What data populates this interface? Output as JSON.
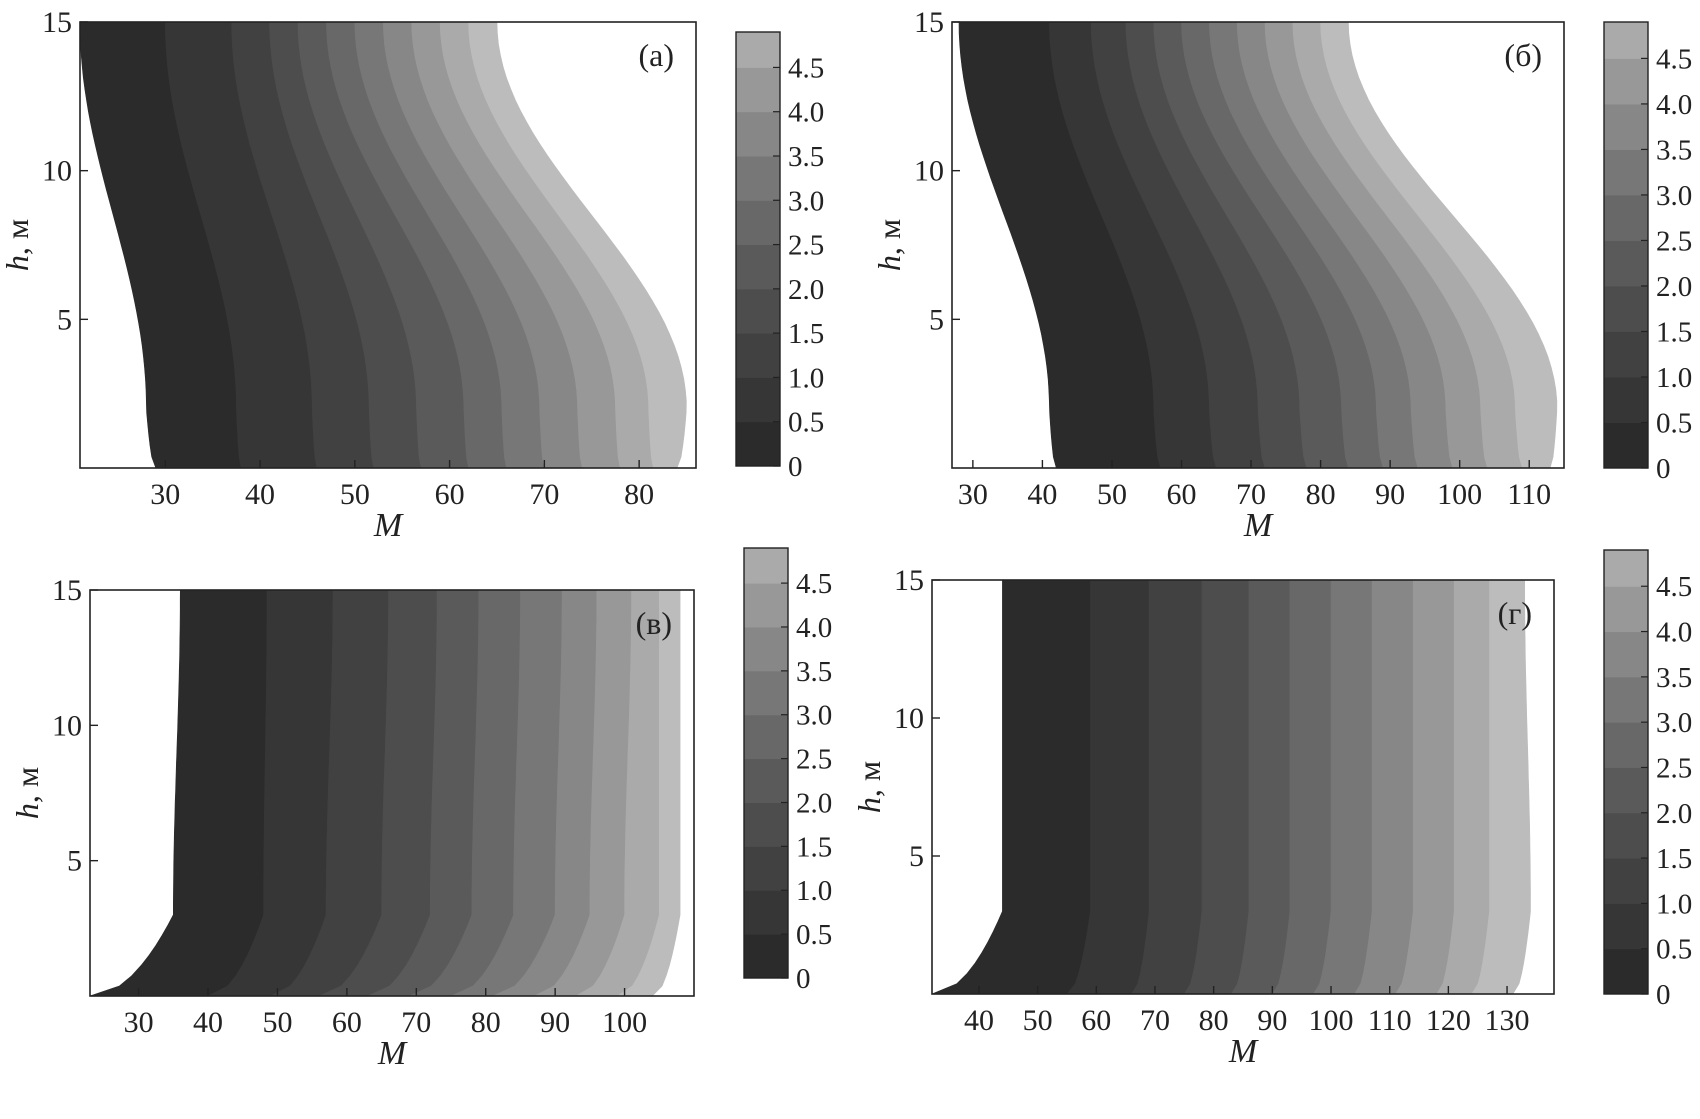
{
  "colors": {
    "levels": [
      "#2b2b2b",
      "#363636",
      "#414141",
      "#4d4d4d",
      "#5a5a5a",
      "#686868",
      "#777777",
      "#878787",
      "#989898",
      "#aaaaaa",
      "#bcbcbc",
      "#cecece",
      "#dedede",
      "#eaeaea"
    ],
    "frame": "#222222",
    "background": "#ffffff"
  },
  "chart_data": [
    {
      "type": "heatmap",
      "panel_label": "(а)",
      "xlabel": "M",
      "ylabel": "h, м",
      "xlim": [
        21,
        86
      ],
      "ylim": [
        0,
        15
      ],
      "xticks": [
        30,
        40,
        50,
        60,
        70,
        80
      ],
      "yticks": [
        5,
        10,
        15
      ],
      "colorbar_ticks": [
        "0",
        "0.5",
        "1.0",
        "1.5",
        "2.0",
        "2.5",
        "3.0",
        "3.5",
        "4.0",
        "4.5"
      ],
      "colorbar_range": [
        0,
        4.9
      ],
      "contour_levels": [
        0,
        0.5,
        1.0,
        1.5,
        2.0,
        2.5,
        3.0,
        3.5,
        4.0,
        4.5,
        4.9
      ],
      "level_boundaries_M": [
        {
          "h": [
            0,
            2,
            15
          ],
          "M": [
            29,
            28,
            21
          ]
        },
        {
          "h": [
            0,
            2,
            15
          ],
          "M": [
            38,
            37.5,
            30
          ]
        },
        {
          "h": [
            0,
            2,
            15
          ],
          "M": [
            46,
            45.5,
            37
          ]
        },
        {
          "h": [
            0,
            2,
            15
          ],
          "M": [
            52,
            51.5,
            41
          ]
        },
        {
          "h": [
            0,
            2,
            15
          ],
          "M": [
            57,
            56.5,
            44
          ]
        },
        {
          "h": [
            0,
            2,
            15
          ],
          "M": [
            62,
            61.5,
            47
          ]
        },
        {
          "h": [
            0,
            2,
            15
          ],
          "M": [
            66,
            65.5,
            50
          ]
        },
        {
          "h": [
            0,
            2,
            15
          ],
          "M": [
            70,
            69.5,
            53
          ]
        },
        {
          "h": [
            0,
            2,
            15
          ],
          "M": [
            74,
            73.5,
            56
          ]
        },
        {
          "h": [
            0,
            2,
            15
          ],
          "M": [
            78,
            77.5,
            59
          ]
        },
        {
          "h": [
            0,
            2,
            15
          ],
          "M": [
            81.5,
            81,
            62
          ]
        },
        {
          "h": [
            0,
            2,
            15
          ],
          "M": [
            84,
            85,
            65
          ]
        }
      ]
    },
    {
      "type": "heatmap",
      "panel_label": "(б)",
      "xlabel": "M",
      "ylabel": "h, м",
      "xlim": [
        27,
        115
      ],
      "ylim": [
        0,
        15
      ],
      "xticks": [
        30,
        40,
        50,
        60,
        70,
        80,
        90,
        100,
        110
      ],
      "yticks": [
        5,
        10,
        15
      ],
      "colorbar_ticks": [
        "0",
        "0.5",
        "1.0",
        "1.5",
        "2.0",
        "2.5",
        "3.0",
        "3.5",
        "4.0",
        "4.5"
      ],
      "colorbar_range": [
        0,
        4.9
      ],
      "contour_levels": [
        0,
        0.5,
        1.0,
        1.5,
        2.0,
        2.5,
        3.0,
        3.5,
        4.0,
        4.5,
        4.9
      ],
      "level_boundaries_M": [
        {
          "h": [
            0,
            2,
            15
          ],
          "M": [
            42,
            41,
            28
          ]
        },
        {
          "h": [
            0,
            2,
            15
          ],
          "M": [
            57,
            56,
            41
          ]
        },
        {
          "h": [
            0,
            2,
            15
          ],
          "M": [
            65,
            64,
            47
          ]
        },
        {
          "h": [
            0,
            2,
            15
          ],
          "M": [
            72,
            71,
            52
          ]
        },
        {
          "h": [
            0,
            2,
            15
          ],
          "M": [
            78,
            77,
            56
          ]
        },
        {
          "h": [
            0,
            2,
            15
          ],
          "M": [
            84,
            83,
            60
          ]
        },
        {
          "h": [
            0,
            2,
            15
          ],
          "M": [
            89,
            88,
            64
          ]
        },
        {
          "h": [
            0,
            2,
            15
          ],
          "M": [
            94,
            93,
            68
          ]
        },
        {
          "h": [
            0,
            2,
            15
          ],
          "M": [
            99,
            98,
            72
          ]
        },
        {
          "h": [
            0,
            2,
            15
          ],
          "M": [
            104,
            103,
            76
          ]
        },
        {
          "h": [
            0,
            2,
            15
          ],
          "M": [
            109,
            108,
            80
          ]
        },
        {
          "h": [
            0,
            2,
            15
          ],
          "M": [
            113,
            114,
            84
          ]
        }
      ]
    },
    {
      "type": "heatmap",
      "panel_label": "(в)",
      "xlabel": "M",
      "ylabel": "h, м",
      "xlim": [
        23,
        110
      ],
      "ylim": [
        0,
        15
      ],
      "xticks": [
        30,
        40,
        50,
        60,
        70,
        80,
        90,
        100
      ],
      "yticks": [
        5,
        10,
        15
      ],
      "colorbar_ticks": [
        "0",
        "0.5",
        "1.0",
        "1.5",
        "2.0",
        "2.5",
        "3.0",
        "3.5",
        "4.0",
        "4.5"
      ],
      "colorbar_range": [
        0,
        4.9
      ],
      "contour_levels": [
        0,
        0.5,
        1.0,
        1.5,
        2.0,
        2.5,
        3.0,
        3.5,
        4.0,
        4.5,
        4.9
      ],
      "level_boundaries_M": [
        {
          "h": [
            0,
            3,
            15
          ],
          "M": [
            23,
            35,
            36
          ]
        },
        {
          "h": [
            0,
            3,
            15
          ],
          "M": [
            40,
            48,
            48.5
          ]
        },
        {
          "h": [
            0,
            3,
            15
          ],
          "M": [
            49,
            57,
            58
          ]
        },
        {
          "h": [
            0,
            3,
            15
          ],
          "M": [
            56,
            65,
            66
          ]
        },
        {
          "h": [
            0,
            3,
            15
          ],
          "M": [
            63,
            72,
            73
          ]
        },
        {
          "h": [
            0,
            3,
            15
          ],
          "M": [
            69,
            78,
            79
          ]
        },
        {
          "h": [
            0,
            3,
            15
          ],
          "M": [
            75,
            84,
            85
          ]
        },
        {
          "h": [
            0,
            3,
            15
          ],
          "M": [
            81,
            90,
            91
          ]
        },
        {
          "h": [
            0,
            3,
            15
          ],
          "M": [
            87,
            95,
            96
          ]
        },
        {
          "h": [
            0,
            3,
            15
          ],
          "M": [
            93,
            100,
            101
          ]
        },
        {
          "h": [
            0,
            3,
            15
          ],
          "M": [
            99,
            105,
            105
          ]
        },
        {
          "h": [
            0,
            3,
            15
          ],
          "M": [
            104,
            108,
            108
          ]
        }
      ]
    },
    {
      "type": "heatmap",
      "panel_label": "(г)",
      "xlabel": "M",
      "ylabel": "h, м",
      "xlim": [
        32,
        138
      ],
      "ylim": [
        0,
        15
      ],
      "xticks": [
        40,
        50,
        60,
        70,
        80,
        90,
        100,
        110,
        120,
        130
      ],
      "yticks": [
        5,
        10,
        15
      ],
      "colorbar_ticks": [
        "0",
        "0.5",
        "1.0",
        "1.5",
        "2.0",
        "2.5",
        "3.0",
        "3.5",
        "4.0",
        "4.5"
      ],
      "colorbar_range": [
        0,
        4.9
      ],
      "contour_levels": [
        0,
        0.5,
        1.0,
        1.5,
        2.0,
        2.5,
        3.0,
        3.5,
        4.0,
        4.5,
        4.9
      ],
      "level_boundaries_M": [
        {
          "h": [
            0,
            3,
            15
          ],
          "M": [
            32,
            44,
            44
          ]
        },
        {
          "h": [
            0,
            3,
            15
          ],
          "M": [
            55,
            59,
            59
          ]
        },
        {
          "h": [
            0,
            3,
            15
          ],
          "M": [
            66,
            69,
            69
          ]
        },
        {
          "h": [
            0,
            3,
            15
          ],
          "M": [
            75,
            78,
            78
          ]
        },
        {
          "h": [
            0,
            3,
            15
          ],
          "M": [
            83,
            86,
            86
          ]
        },
        {
          "h": [
            0,
            3,
            15
          ],
          "M": [
            90,
            93,
            93
          ]
        },
        {
          "h": [
            0,
            3,
            15
          ],
          "M": [
            97,
            100,
            100
          ]
        },
        {
          "h": [
            0,
            3,
            15
          ],
          "M": [
            104,
            107,
            107
          ]
        },
        {
          "h": [
            0,
            3,
            15
          ],
          "M": [
            111,
            114,
            114
          ]
        },
        {
          "h": [
            0,
            3,
            15
          ],
          "M": [
            118,
            121,
            121
          ]
        },
        {
          "h": [
            0,
            3,
            15
          ],
          "M": [
            124,
            127,
            127
          ]
        },
        {
          "h": [
            0,
            3,
            15
          ],
          "M": [
            131,
            134,
            133
          ]
        }
      ]
    }
  ]
}
